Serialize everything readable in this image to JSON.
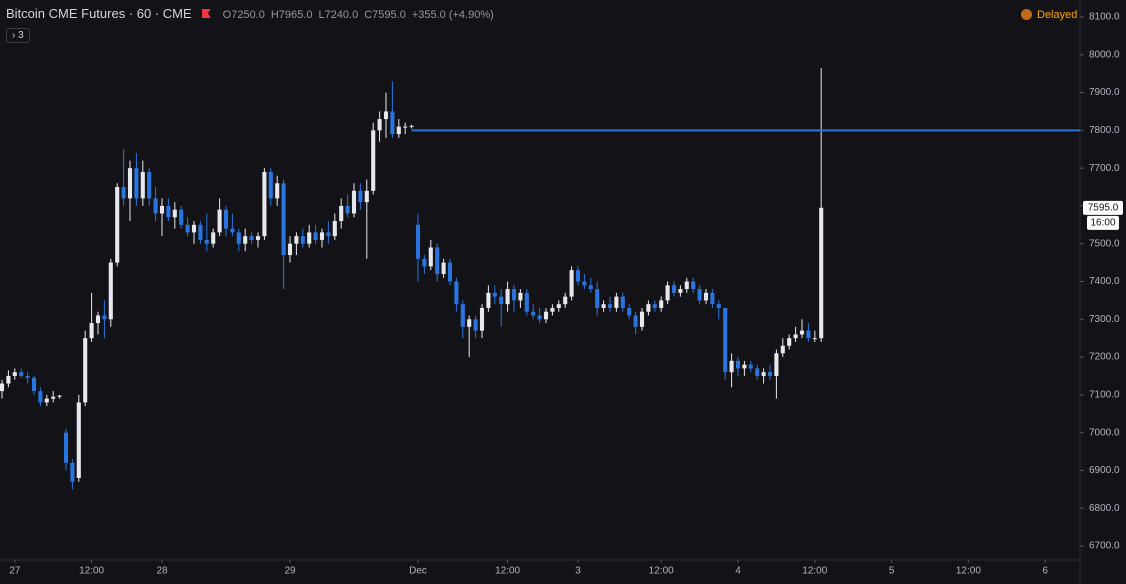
{
  "chart_data": {
    "type": "candlestick",
    "title": "Bitcoin CME Futures · 60 · CME",
    "legend": [
      "O7250.0",
      "H7965.0",
      "L7240.0",
      "C7595.0",
      "+355.0 (+4.90%)"
    ],
    "indicator_count": "3",
    "status": "Delayed",
    "last_price_label": "7595.0",
    "countdown": "16:00",
    "hline": 7800,
    "up_color": "#e6e8ee",
    "down_color": "#2a74e0",
    "hline_color": "#2a74e0",
    "ylim": [
      6700,
      8100
    ],
    "yticks": [
      {
        "value": 6700,
        "label": "6700.0"
      },
      {
        "value": 6800,
        "label": "6800.0"
      },
      {
        "value": 6900,
        "label": "6900.0"
      },
      {
        "value": 7000,
        "label": "7000.0"
      },
      {
        "value": 7100,
        "label": "7100.0"
      },
      {
        "value": 7200,
        "label": "7200.0"
      },
      {
        "value": 7300,
        "label": "7300.0"
      },
      {
        "value": 7400,
        "label": "7400.0"
      },
      {
        "value": 7500,
        "label": "7500.0"
      },
      {
        "value": 7600,
        "label": "7600.0"
      },
      {
        "value": 7700,
        "label": "7700.0"
      },
      {
        "value": 7800,
        "label": "7800.0"
      },
      {
        "value": 7900,
        "label": "7900.0"
      },
      {
        "value": 8000,
        "label": "8000.0"
      },
      {
        "value": 8100,
        "label": "8100.0"
      }
    ],
    "xlim": [
      0,
      168
    ],
    "xticks": [
      {
        "value": 2,
        "label": "27"
      },
      {
        "value": 14,
        "label": "12:00"
      },
      {
        "value": 25,
        "label": "28"
      },
      {
        "value": 45,
        "label": "29"
      },
      {
        "value": 65,
        "label": "Dec"
      },
      {
        "value": 79,
        "label": "12:00"
      },
      {
        "value": 90,
        "label": "3"
      },
      {
        "value": 103,
        "label": "12:00"
      },
      {
        "value": 115,
        "label": "4"
      },
      {
        "value": 127,
        "label": "12:00"
      },
      {
        "value": 139,
        "label": "5"
      },
      {
        "value": 151,
        "label": "12:00"
      },
      {
        "value": 163,
        "label": "6"
      }
    ],
    "ohlc": [
      [
        7110,
        7140,
        7090,
        7130
      ],
      [
        7130,
        7165,
        7120,
        7150
      ],
      [
        7150,
        7170,
        7140,
        7160
      ],
      [
        7160,
        7170,
        7145,
        7150
      ],
      [
        7150,
        7160,
        7130,
        7145
      ],
      [
        7145,
        7150,
        7100,
        7110
      ],
      [
        7110,
        7120,
        7070,
        7080
      ],
      [
        7080,
        7100,
        7070,
        7090
      ],
      [
        7090,
        7110,
        7080,
        7095
      ],
      [
        7095,
        7100,
        7090,
        7098
      ],
      [
        7000,
        7010,
        6900,
        6920
      ],
      [
        6920,
        6930,
        6850,
        6870
      ],
      [
        6880,
        7100,
        6870,
        7080
      ],
      [
        7080,
        7270,
        7070,
        7250
      ],
      [
        7250,
        7370,
        7240,
        7290
      ],
      [
        7290,
        7320,
        7260,
        7310
      ],
      [
        7310,
        7350,
        7250,
        7300
      ],
      [
        7300,
        7460,
        7280,
        7450
      ],
      [
        7450,
        7660,
        7440,
        7650
      ],
      [
        7650,
        7750,
        7600,
        7620
      ],
      [
        7620,
        7720,
        7560,
        7700
      ],
      [
        7700,
        7740,
        7600,
        7620
      ],
      [
        7620,
        7720,
        7600,
        7690
      ],
      [
        7690,
        7700,
        7600,
        7620
      ],
      [
        7620,
        7650,
        7560,
        7580
      ],
      [
        7580,
        7620,
        7520,
        7600
      ],
      [
        7600,
        7620,
        7560,
        7570
      ],
      [
        7570,
        7610,
        7540,
        7590
      ],
      [
        7590,
        7600,
        7540,
        7550
      ],
      [
        7550,
        7570,
        7520,
        7530
      ],
      [
        7530,
        7560,
        7500,
        7550
      ],
      [
        7550,
        7560,
        7500,
        7510
      ],
      [
        7510,
        7580,
        7480,
        7500
      ],
      [
        7500,
        7540,
        7490,
        7530
      ],
      [
        7530,
        7620,
        7520,
        7590
      ],
      [
        7590,
        7600,
        7520,
        7540
      ],
      [
        7540,
        7580,
        7520,
        7530
      ],
      [
        7530,
        7540,
        7480,
        7500
      ],
      [
        7500,
        7540,
        7480,
        7520
      ],
      [
        7520,
        7530,
        7500,
        7510
      ],
      [
        7510,
        7530,
        7490,
        7520
      ],
      [
        7520,
        7700,
        7510,
        7690
      ],
      [
        7690,
        7700,
        7600,
        7620
      ],
      [
        7620,
        7680,
        7600,
        7660
      ],
      [
        7660,
        7670,
        7380,
        7470
      ],
      [
        7470,
        7520,
        7450,
        7500
      ],
      [
        7500,
        7530,
        7470,
        7520
      ],
      [
        7520,
        7540,
        7490,
        7500
      ],
      [
        7500,
        7550,
        7490,
        7530
      ],
      [
        7530,
        7550,
        7500,
        7510
      ],
      [
        7510,
        7540,
        7490,
        7530
      ],
      [
        7530,
        7560,
        7500,
        7520
      ],
      [
        7520,
        7580,
        7510,
        7560
      ],
      [
        7560,
        7620,
        7540,
        7600
      ],
      [
        7600,
        7630,
        7570,
        7580
      ],
      [
        7580,
        7660,
        7570,
        7640
      ],
      [
        7640,
        7660,
        7590,
        7610
      ],
      [
        7610,
        7670,
        7460,
        7640
      ],
      [
        7640,
        7820,
        7630,
        7800
      ],
      [
        7800,
        7850,
        7770,
        7830
      ],
      [
        7830,
        7900,
        7780,
        7850
      ],
      [
        7850,
        7930,
        7780,
        7790
      ],
      [
        7790,
        7830,
        7780,
        7810
      ],
      [
        7810,
        7820,
        7790,
        7810
      ],
      [
        7810,
        7815,
        7805,
        7812
      ],
      [
        7550,
        7580,
        7400,
        7460
      ],
      [
        7460,
        7470,
        7420,
        7440
      ],
      [
        7440,
        7510,
        7430,
        7490
      ],
      [
        7490,
        7500,
        7400,
        7420
      ],
      [
        7420,
        7460,
        7410,
        7450
      ],
      [
        7450,
        7460,
        7390,
        7400
      ],
      [
        7400,
        7410,
        7320,
        7340
      ],
      [
        7340,
        7350,
        7250,
        7280
      ],
      [
        7280,
        7310,
        7200,
        7300
      ],
      [
        7300,
        7310,
        7250,
        7270
      ],
      [
        7270,
        7340,
        7250,
        7330
      ],
      [
        7330,
        7390,
        7320,
        7370
      ],
      [
        7370,
        7390,
        7340,
        7360
      ],
      [
        7360,
        7380,
        7280,
        7340
      ],
      [
        7340,
        7400,
        7320,
        7380
      ],
      [
        7380,
        7390,
        7320,
        7350
      ],
      [
        7350,
        7380,
        7330,
        7370
      ],
      [
        7370,
        7380,
        7310,
        7320
      ],
      [
        7320,
        7340,
        7300,
        7310
      ],
      [
        7310,
        7330,
        7290,
        7300
      ],
      [
        7300,
        7330,
        7290,
        7320
      ],
      [
        7320,
        7340,
        7310,
        7330
      ],
      [
        7330,
        7350,
        7320,
        7340
      ],
      [
        7340,
        7370,
        7330,
        7360
      ],
      [
        7360,
        7440,
        7350,
        7430
      ],
      [
        7430,
        7440,
        7390,
        7400
      ],
      [
        7400,
        7420,
        7380,
        7390
      ],
      [
        7390,
        7410,
        7370,
        7380
      ],
      [
        7380,
        7400,
        7310,
        7330
      ],
      [
        7330,
        7350,
        7320,
        7340
      ],
      [
        7340,
        7360,
        7320,
        7330
      ],
      [
        7330,
        7370,
        7320,
        7360
      ],
      [
        7360,
        7370,
        7320,
        7330
      ],
      [
        7330,
        7340,
        7300,
        7310
      ],
      [
        7310,
        7320,
        7260,
        7280
      ],
      [
        7280,
        7330,
        7270,
        7320
      ],
      [
        7320,
        7350,
        7310,
        7340
      ],
      [
        7340,
        7350,
        7320,
        7330
      ],
      [
        7330,
        7360,
        7320,
        7350
      ],
      [
        7350,
        7400,
        7340,
        7390
      ],
      [
        7390,
        7400,
        7360,
        7370
      ],
      [
        7370,
        7390,
        7360,
        7380
      ],
      [
        7380,
        7410,
        7370,
        7400
      ],
      [
        7400,
        7410,
        7370,
        7380
      ],
      [
        7380,
        7390,
        7340,
        7350
      ],
      [
        7350,
        7380,
        7340,
        7370
      ],
      [
        7370,
        7380,
        7330,
        7340
      ],
      [
        7340,
        7350,
        7300,
        7330
      ],
      [
        7330,
        7330,
        7140,
        7160
      ],
      [
        7160,
        7210,
        7120,
        7190
      ],
      [
        7190,
        7200,
        7150,
        7170
      ],
      [
        7170,
        7190,
        7150,
        7180
      ],
      [
        7180,
        7190,
        7160,
        7170
      ],
      [
        7170,
        7180,
        7140,
        7150
      ],
      [
        7150,
        7170,
        7130,
        7160
      ],
      [
        7160,
        7180,
        7140,
        7150
      ],
      [
        7150,
        7220,
        7090,
        7210
      ],
      [
        7210,
        7250,
        7200,
        7230
      ],
      [
        7230,
        7260,
        7220,
        7250
      ],
      [
        7250,
        7280,
        7240,
        7260
      ],
      [
        7260,
        7300,
        7250,
        7270
      ],
      [
        7270,
        7290,
        7240,
        7250
      ],
      [
        7250,
        7270,
        7240,
        7250
      ],
      [
        7250,
        7965,
        7240,
        7595
      ]
    ]
  }
}
